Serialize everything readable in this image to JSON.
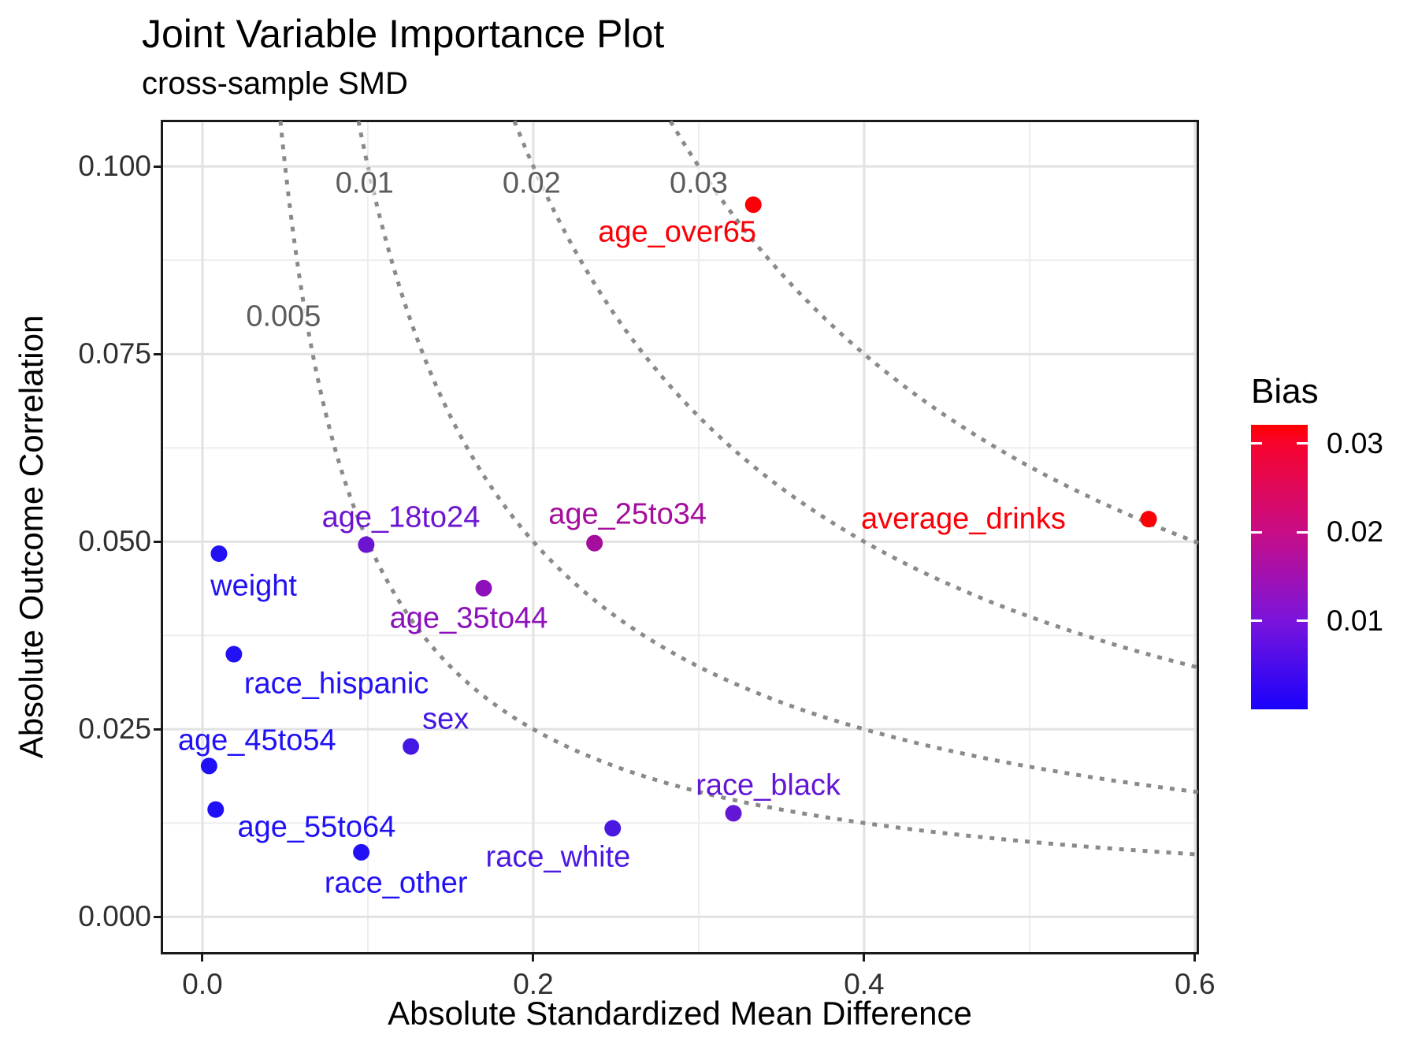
{
  "title": "Joint Variable Importance Plot",
  "subtitle": "cross-sample SMD",
  "chart_data": {
    "type": "scatter",
    "title": "Joint Variable Importance Plot",
    "subtitle": "cross-sample SMD",
    "xlabel": "Absolute Standardized Mean Difference",
    "ylabel": "Absolute Outcome Correlation",
    "xlim": [
      -0.0238,
      0.601
    ],
    "ylim": [
      -0.0047,
      0.1059
    ],
    "grid": true,
    "x_ticks": [
      {
        "value": 0.0,
        "label": "0.0"
      },
      {
        "value": 0.2,
        "label": "0.2"
      },
      {
        "value": 0.4,
        "label": "0.4"
      },
      {
        "value": 0.6,
        "label": "0.6"
      }
    ],
    "y_ticks": [
      {
        "value": 0.0,
        "label": "0.000"
      },
      {
        "value": 0.025,
        "label": "0.025"
      },
      {
        "value": 0.05,
        "label": "0.050"
      },
      {
        "value": 0.075,
        "label": "0.075"
      },
      {
        "value": 0.1,
        "label": "0.100"
      }
    ],
    "x_minor": [
      0.1,
      0.3,
      0.5
    ],
    "y_minor": [
      0.0125,
      0.0375,
      0.0625,
      0.0875
    ],
    "points": [
      {
        "name": "weight",
        "x": 0.01,
        "y": 0.0484,
        "bias": 0.0005,
        "color": "#2212F3",
        "label_x": 0.031,
        "label_y": 0.044
      },
      {
        "name": "age_18to24",
        "x": 0.099,
        "y": 0.0496,
        "bias": 0.0049,
        "color": "#6C15D0",
        "label_x": 0.12,
        "label_y": 0.0532
      },
      {
        "name": "age_25to34",
        "x": 0.237,
        "y": 0.0498,
        "bias": 0.0118,
        "color": "#A50E9C",
        "label_x": 0.257,
        "label_y": 0.0536
      },
      {
        "name": "age_35to44",
        "x": 0.17,
        "y": 0.0438,
        "bias": 0.0074,
        "color": "#8D10BB",
        "label_x": 0.161,
        "label_y": 0.0397
      },
      {
        "name": "race_hispanic",
        "x": 0.019,
        "y": 0.035,
        "bias": 0.0007,
        "color": "#2212F3",
        "label_x": 0.081,
        "label_y": 0.031
      },
      {
        "name": "sex",
        "x": 0.126,
        "y": 0.0227,
        "bias": 0.0029,
        "color": "#4517E2",
        "label_x": 0.147,
        "label_y": 0.0263
      },
      {
        "name": "age_45to54",
        "x": 0.004,
        "y": 0.0201,
        "bias": 0.0001,
        "color": "#1F10F6",
        "label_x": 0.033,
        "label_y": 0.0235
      },
      {
        "name": "age_55to64",
        "x": 0.008,
        "y": 0.0143,
        "bias": 0.0001,
        "color": "#1F10F6",
        "label_x": 0.069,
        "label_y": 0.0119
      },
      {
        "name": "race_other",
        "x": 0.096,
        "y": 0.0086,
        "bias": 0.0008,
        "color": "#2212F3",
        "label_x": 0.117,
        "label_y": 0.0044
      },
      {
        "name": "race_white",
        "x": 0.248,
        "y": 0.0118,
        "bias": 0.0029,
        "color": "#4A18E0",
        "label_x": 0.215,
        "label_y": 0.0079
      },
      {
        "name": "race_black",
        "x": 0.321,
        "y": 0.0138,
        "bias": 0.0044,
        "color": "#6316D4",
        "label_x": 0.342,
        "label_y": 0.0175
      },
      {
        "name": "age_over65",
        "x": 0.333,
        "y": 0.0949,
        "bias": 0.0316,
        "color": "#FB0007",
        "label_x": 0.287,
        "label_y": 0.0912
      },
      {
        "name": "average_drinks",
        "x": 0.572,
        "y": 0.053,
        "bias": 0.0303,
        "color": "#FB0007",
        "label_x": 0.46,
        "label_y": 0.053
      }
    ],
    "contours": {
      "levels": [
        0.005,
        0.01,
        0.02,
        0.03
      ],
      "color": "#8A8A8A",
      "label_color": "#5C5C5C",
      "labels": [
        {
          "text": "0.005",
          "x": 0.049,
          "y": 0.08
        },
        {
          "text": "0.01",
          "x": 0.098,
          "y": 0.0977
        },
        {
          "text": "0.02",
          "x": 0.199,
          "y": 0.0977
        },
        {
          "text": "0.03",
          "x": 0.3,
          "y": 0.0977
        }
      ]
    },
    "legend": {
      "title": "Bias",
      "position": "right",
      "domain": [
        0,
        0.0321
      ],
      "ticks": [
        {
          "value": 0.03,
          "label": "0.03"
        },
        {
          "value": 0.02,
          "label": "0.02"
        },
        {
          "value": 0.01,
          "label": "0.01"
        }
      ],
      "gradient": [
        {
          "at": 0.0,
          "color": "#1902FB"
        },
        {
          "at": 0.31,
          "color": "#7A14DC"
        },
        {
          "at": 0.62,
          "color": "#C70D87"
        },
        {
          "at": 0.94,
          "color": "#F8032B"
        },
        {
          "at": 1.0,
          "color": "#FF0000"
        }
      ]
    }
  }
}
